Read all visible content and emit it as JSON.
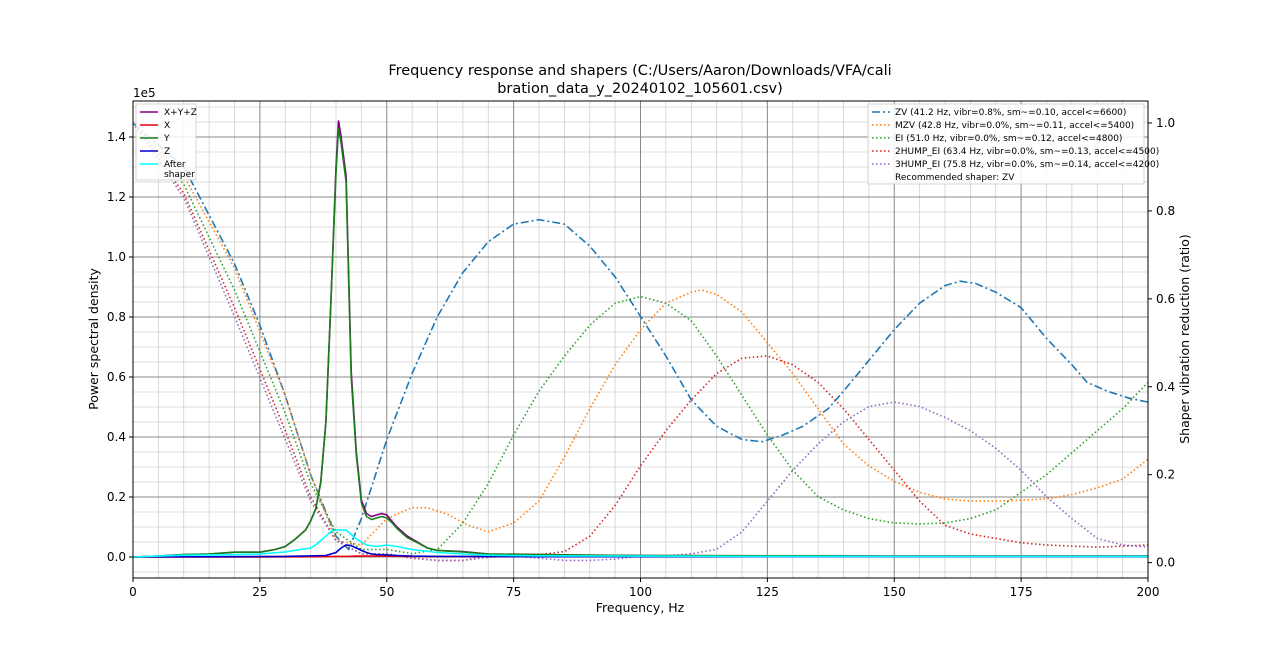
{
  "chart_data": {
    "type": "line",
    "title_line1": "Frequency response and shapers (C:/Users/Aaron/Downloads/VFA/cali",
    "title_line2": "bration_data_y_20240102_105601.csv)",
    "xlabel": "Frequency, Hz",
    "ylabel_left": "Power spectral density",
    "ylabel_right": "Shaper vibration reduction (ratio)",
    "left_axis_multiplier": "1e5",
    "xlim": [
      0,
      200
    ],
    "ylim_left": [
      -0.07,
      1.52
    ],
    "ylim_right": [
      -0.035,
      1.05
    ],
    "x_ticks": [
      0,
      25,
      50,
      75,
      100,
      125,
      150,
      175,
      200
    ],
    "y_ticks_left": [
      0.0,
      0.2,
      0.4,
      0.6,
      0.8,
      1.0,
      1.2,
      1.4
    ],
    "y_ticks_left_labels": [
      "0.0",
      "0.2",
      "0.4",
      "0.6",
      "0.8",
      "1.0",
      "1.2",
      "1.4"
    ],
    "y_ticks_right": [
      0.0,
      0.2,
      0.4,
      0.6,
      0.8,
      1.0
    ],
    "y_ticks_right_labels": [
      "0.0",
      "0.2",
      "0.4",
      "0.6",
      "0.8",
      "1.0"
    ],
    "grid": true,
    "psd_legend_position": "top-left",
    "psd_series": [
      {
        "name": "X+Y+Z",
        "color": "#800080",
        "x": [
          0,
          5,
          10,
          15,
          20,
          25,
          28,
          30,
          32,
          34,
          35,
          36,
          37,
          38,
          39,
          40,
          40.5,
          41,
          42,
          43,
          44,
          45,
          46,
          47,
          48,
          49,
          50,
          51,
          52,
          54,
          56,
          58,
          60,
          65,
          70,
          80,
          90,
          100,
          125,
          150,
          175,
          200
        ],
        "y": [
          0,
          0.003,
          0.008,
          0.01,
          0.016,
          0.016,
          0.025,
          0.035,
          0.06,
          0.09,
          0.12,
          0.16,
          0.25,
          0.45,
          0.85,
          1.3,
          1.455,
          1.4,
          1.27,
          0.62,
          0.35,
          0.19,
          0.145,
          0.135,
          0.14,
          0.145,
          0.14,
          0.12,
          0.1,
          0.07,
          0.05,
          0.03,
          0.022,
          0.018,
          0.01,
          0.008,
          0.006,
          0.005,
          0.004,
          0.003,
          0.003,
          0.003
        ]
      },
      {
        "name": "X",
        "color": "#e8000b",
        "x": [
          0,
          20,
          38,
          40,
          42,
          45,
          50,
          55,
          60,
          100,
          150,
          200
        ],
        "y": [
          0,
          0.0,
          0.001,
          0.002,
          0.002,
          0.003,
          0.003,
          0.002,
          0.001,
          0.001,
          0.001,
          0.001
        ]
      },
      {
        "name": "Y",
        "color": "#1a7d1a",
        "x": [
          0,
          5,
          10,
          15,
          20,
          25,
          28,
          30,
          32,
          34,
          35,
          36,
          37,
          38,
          39,
          40,
          40.5,
          41,
          42,
          43,
          44,
          45,
          46,
          47,
          48,
          49,
          50,
          51,
          52,
          54,
          56,
          58,
          60,
          65,
          70,
          80,
          90,
          100,
          125,
          150,
          175,
          200
        ],
        "y": [
          0,
          0.003,
          0.008,
          0.01,
          0.016,
          0.016,
          0.025,
          0.035,
          0.06,
          0.09,
          0.12,
          0.16,
          0.25,
          0.45,
          0.85,
          1.28,
          1.43,
          1.38,
          1.25,
          0.6,
          0.34,
          0.18,
          0.135,
          0.125,
          0.13,
          0.135,
          0.13,
          0.115,
          0.095,
          0.065,
          0.048,
          0.03,
          0.022,
          0.017,
          0.01,
          0.008,
          0.006,
          0.005,
          0.004,
          0.003,
          0.003,
          0.003
        ]
      },
      {
        "name": "Z",
        "color": "#0000cc",
        "x": [
          0,
          20,
          30,
          38,
          40,
          41,
          42,
          43,
          44,
          45,
          46,
          47,
          48,
          50,
          52,
          55,
          60,
          80,
          100,
          150,
          200
        ],
        "y": [
          0,
          0.001,
          0.002,
          0.005,
          0.015,
          0.03,
          0.04,
          0.038,
          0.03,
          0.022,
          0.015,
          0.01,
          0.008,
          0.007,
          0.005,
          0.003,
          0.002,
          0.001,
          0.001,
          0.001,
          0.001
        ]
      },
      {
        "name": "After\nshaper",
        "color": "#00ffff",
        "x": [
          0,
          5,
          10,
          15,
          20,
          25,
          30,
          33,
          35,
          36,
          37,
          38,
          39,
          40,
          41,
          42,
          43,
          44,
          45,
          46,
          48,
          50,
          52,
          55,
          60,
          65,
          70,
          80,
          100,
          125,
          150,
          175,
          200
        ],
        "y": [
          0,
          0.003,
          0.006,
          0.007,
          0.008,
          0.01,
          0.017,
          0.025,
          0.03,
          0.04,
          0.055,
          0.07,
          0.085,
          0.09,
          0.09,
          0.09,
          0.075,
          0.06,
          0.05,
          0.04,
          0.035,
          0.04,
          0.035,
          0.025,
          0.015,
          0.01,
          0.006,
          0.004,
          0.003,
          0.002,
          0.002,
          0.002,
          0.002
        ]
      }
    ],
    "shaper_series": [
      {
        "name": "ZV (41.2 Hz, vibr=0.8%, sm~=0.10, accel<=6600)",
        "color": "#1f77b4",
        "dash": "dashdot",
        "x": [
          0,
          10,
          20,
          25,
          30,
          35,
          40,
          42.5,
          45,
          50,
          55,
          60,
          65,
          70,
          75,
          80,
          85,
          90,
          95,
          100,
          105,
          110,
          115,
          120,
          124,
          128,
          132,
          137,
          140,
          145,
          150,
          155,
          160,
          163,
          166,
          170,
          175,
          180,
          185,
          188,
          192,
          196,
          200
        ],
        "y": [
          1,
          0.9,
          0.68,
          0.54,
          0.38,
          0.2,
          0.06,
          0.03,
          0.1,
          0.28,
          0.43,
          0.56,
          0.66,
          0.73,
          0.77,
          0.78,
          0.77,
          0.72,
          0.65,
          0.56,
          0.47,
          0.37,
          0.31,
          0.28,
          0.275,
          0.29,
          0.31,
          0.35,
          0.39,
          0.46,
          0.53,
          0.59,
          0.63,
          0.64,
          0.635,
          0.615,
          0.58,
          0.51,
          0.45,
          0.41,
          0.39,
          0.375,
          0.365
        ]
      },
      {
        "name": "MZV (42.8 Hz, vibr=0.0%, sm~=0.11, accel<=5400)",
        "color": "#ff7f0e",
        "dash": "dot",
        "x": [
          0,
          10,
          20,
          30,
          35,
          40,
          45,
          50,
          55,
          58,
          62,
          66,
          70,
          75,
          80,
          85,
          90,
          95,
          100,
          105,
          110,
          112,
          115,
          120,
          125,
          130,
          135,
          140,
          145,
          150,
          155,
          160,
          165,
          170,
          175,
          180,
          185,
          190,
          195,
          200
        ],
        "y": [
          1,
          0.88,
          0.67,
          0.38,
          0.2,
          0.05,
          0.04,
          0.1,
          0.125,
          0.125,
          0.11,
          0.085,
          0.07,
          0.09,
          0.14,
          0.24,
          0.35,
          0.45,
          0.53,
          0.59,
          0.615,
          0.62,
          0.61,
          0.57,
          0.5,
          0.43,
          0.35,
          0.27,
          0.22,
          0.185,
          0.16,
          0.145,
          0.14,
          0.14,
          0.142,
          0.145,
          0.155,
          0.17,
          0.19,
          0.235
        ]
      },
      {
        "name": "EI (51.0 Hz, vibr=0.0%, sm~=0.12, accel<=4800)",
        "color": "#2ca02c",
        "dash": "dot",
        "x": [
          0,
          10,
          20,
          30,
          35,
          40,
          45,
          50,
          55,
          60,
          65,
          70,
          75,
          80,
          85,
          90,
          95,
          100,
          105,
          110,
          115,
          120,
          125,
          130,
          135,
          140,
          145,
          150,
          155,
          160,
          165,
          170,
          175,
          180,
          185,
          190,
          195,
          200
        ],
        "y": [
          1,
          0.86,
          0.62,
          0.34,
          0.18,
          0.07,
          0.03,
          0.03,
          0.02,
          0.03,
          0.09,
          0.18,
          0.29,
          0.39,
          0.47,
          0.54,
          0.59,
          0.605,
          0.59,
          0.55,
          0.47,
          0.38,
          0.29,
          0.21,
          0.15,
          0.12,
          0.1,
          0.09,
          0.088,
          0.09,
          0.1,
          0.12,
          0.16,
          0.2,
          0.25,
          0.3,
          0.35,
          0.41
        ]
      },
      {
        "name": "2HUMP_EI (63.4 Hz, vibr=0.0%, sm~=0.13, accel<=4500)",
        "color": "#d62728",
        "dash": "dot",
        "x": [
          0,
          10,
          20,
          30,
          35,
          40,
          45,
          50,
          55,
          60,
          65,
          70,
          75,
          80,
          85,
          90,
          95,
          100,
          105,
          110,
          115,
          120,
          125,
          130,
          135,
          140,
          145,
          150,
          155,
          160,
          165,
          170,
          175,
          180,
          190,
          200
        ],
        "y": [
          1,
          0.84,
          0.58,
          0.3,
          0.15,
          0.05,
          0.02,
          0.02,
          0.01,
          0.005,
          0.005,
          0.015,
          0.02,
          0.018,
          0.025,
          0.06,
          0.13,
          0.22,
          0.3,
          0.37,
          0.43,
          0.465,
          0.47,
          0.45,
          0.41,
          0.35,
          0.28,
          0.21,
          0.14,
          0.085,
          0.065,
          0.055,
          0.045,
          0.04,
          0.035,
          0.04
        ]
      },
      {
        "name": "3HUMP_EI (75.8 Hz, vibr=0.0%, sm~=0.14, accel<=4200)",
        "color": "#9467bd",
        "dash": "dot",
        "x": [
          0,
          10,
          20,
          30,
          35,
          40,
          45,
          50,
          55,
          60,
          65,
          70,
          75,
          80,
          85,
          90,
          95,
          100,
          105,
          110,
          115,
          120,
          125,
          130,
          135,
          140,
          145,
          150,
          155,
          160,
          165,
          170,
          175,
          180,
          185,
          190,
          195,
          200
        ],
        "y": [
          1,
          0.83,
          0.56,
          0.28,
          0.14,
          0.05,
          0.02,
          0.02,
          0.01,
          0.005,
          0.005,
          0.012,
          0.015,
          0.01,
          0.005,
          0.005,
          0.008,
          0.015,
          0.015,
          0.02,
          0.03,
          0.07,
          0.14,
          0.21,
          0.27,
          0.32,
          0.355,
          0.365,
          0.355,
          0.33,
          0.3,
          0.26,
          0.21,
          0.15,
          0.1,
          0.055,
          0.04,
          0.035
        ]
      }
    ],
    "recommended_text": "Recommended shaper: ZV",
    "shaper_legend_position": "top-right"
  }
}
